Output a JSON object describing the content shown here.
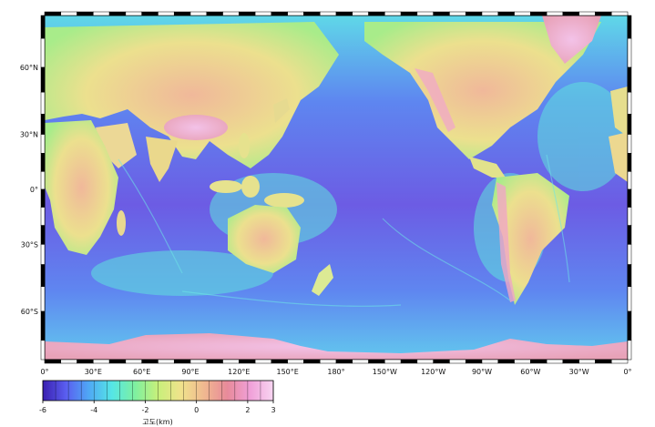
{
  "map": {
    "projection": "Miller cylindrical",
    "center_meridian": "180°",
    "lat_labels": [
      "60°N",
      "30°N",
      "0°",
      "30°S",
      "60°S"
    ],
    "lat_values": [
      60,
      30,
      0,
      -30,
      -60
    ],
    "lon_labels": [
      "0°",
      "30°E",
      "60°E",
      "90°E",
      "120°E",
      "150°E",
      "180°",
      "150°W",
      "120°W",
      "90°W",
      "60°W",
      "30°W",
      "0°"
    ],
    "lon_values": [
      0,
      30,
      60,
      90,
      120,
      150,
      180,
      210,
      240,
      270,
      300,
      330,
      360
    ],
    "colors": {
      "deep_ocean": "#6a58e0",
      "ocean": "#5d7cf0",
      "shelf": "#5ce8e0",
      "lowland": "#e8e08a",
      "highland": "#f0a0c8",
      "ice": "#f6c8e6"
    }
  },
  "colorbar": {
    "title": "고도(km)",
    "tick_labels": [
      "-6",
      "-4",
      "-2",
      "0",
      "2",
      "3"
    ],
    "tick_values": [
      -6,
      -4,
      -2,
      0,
      2,
      3
    ],
    "min": -6,
    "max": 3,
    "colors": [
      "#3a1fb0",
      "#5a5ef0",
      "#4fa8f5",
      "#55e6e6",
      "#7ef0a0",
      "#c8f07a",
      "#f0e28c",
      "#f0b890",
      "#e88a9a",
      "#f0a0d8",
      "#f8d6f2"
    ]
  }
}
